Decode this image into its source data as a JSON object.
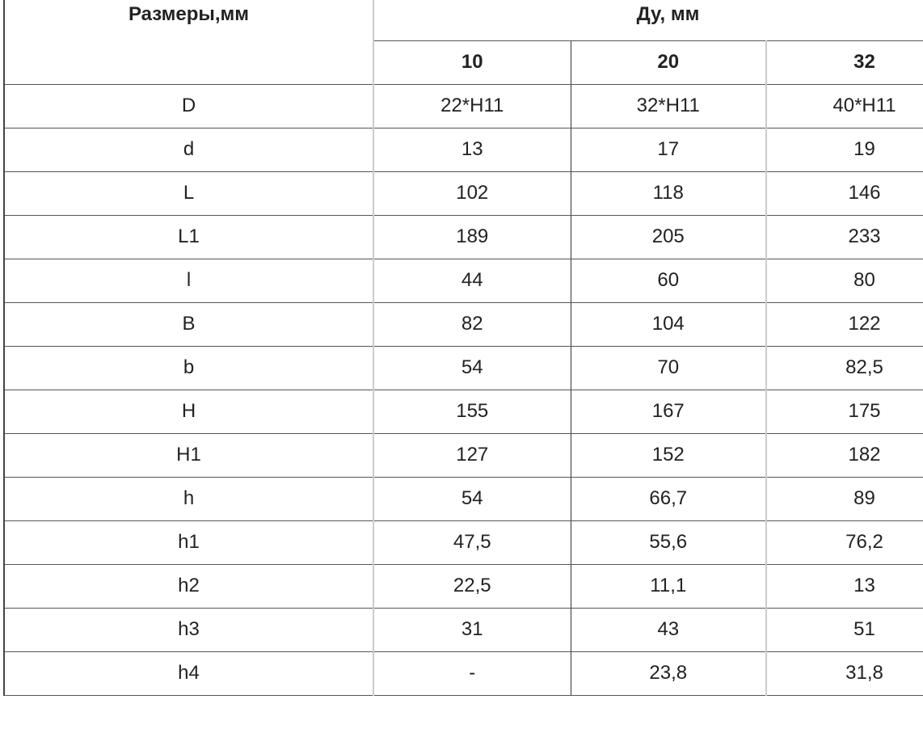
{
  "table": {
    "header_left": "Размеры,мм",
    "header_group": "Ду, мм",
    "columns": [
      "10",
      "20",
      "32"
    ],
    "rows": [
      {
        "label": "D",
        "values": [
          "22*H11",
          "32*H11",
          "40*H11"
        ]
      },
      {
        "label": "d",
        "values": [
          "13",
          "17",
          "19"
        ]
      },
      {
        "label": "L",
        "values": [
          "102",
          "118",
          "146"
        ]
      },
      {
        "label": "L1",
        "values": [
          "189",
          "205",
          "233"
        ]
      },
      {
        "label": "l",
        "values": [
          "44",
          "60",
          "80"
        ]
      },
      {
        "label": "B",
        "values": [
          "82",
          "104",
          "122"
        ]
      },
      {
        "label": "b",
        "values": [
          "54",
          "70",
          "82,5"
        ]
      },
      {
        "label": "H",
        "values": [
          "155",
          "167",
          "175"
        ]
      },
      {
        "label": "H1",
        "values": [
          "127",
          "152",
          "182"
        ]
      },
      {
        "label": "h",
        "values": [
          "54",
          "66,7",
          "89"
        ]
      },
      {
        "label": "h1",
        "values": [
          "47,5",
          "55,6",
          "76,2"
        ]
      },
      {
        "label": "h2",
        "values": [
          "22,5",
          "11,1",
          "13"
        ]
      },
      {
        "label": "h3",
        "values": [
          "31",
          "43",
          "51"
        ]
      },
      {
        "label": "h4",
        "values": [
          "-",
          "23,8",
          "31,8"
        ]
      }
    ]
  }
}
